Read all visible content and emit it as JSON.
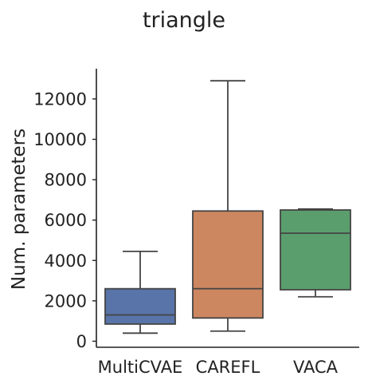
{
  "chart_data": {
    "type": "box",
    "title": "triangle",
    "xlabel": "",
    "ylabel": "Num. parameters",
    "ylim": [
      -300,
      13500
    ],
    "yticks": [
      0,
      2000,
      4000,
      6000,
      8000,
      10000,
      12000
    ],
    "grid": false,
    "categories": [
      "MultiCVAE",
      "CAREFL",
      "VACA"
    ],
    "boxes": [
      {
        "category": "MultiCVAE",
        "whisker_low": 400,
        "q1": 850,
        "median": 1300,
        "q3": 2600,
        "whisker_high": 4450,
        "color": "#5874a8"
      },
      {
        "category": "CAREFL",
        "whisker_low": 500,
        "q1": 1150,
        "median": 2600,
        "q3": 6450,
        "whisker_high": 12900,
        "color": "#cd8760"
      },
      {
        "category": "VACA",
        "whisker_low": 2200,
        "q1": 2550,
        "median": 5350,
        "q3": 6500,
        "whisker_high": 6550,
        "color": "#5b9e6d"
      }
    ]
  }
}
